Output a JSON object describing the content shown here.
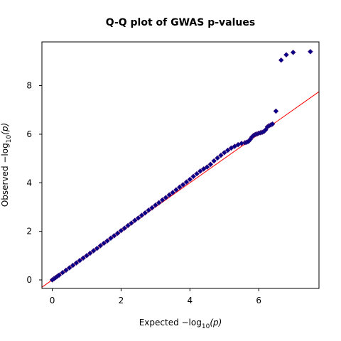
{
  "chart_data": {
    "type": "scatter",
    "title": "Q-Q plot of GWAS p-values",
    "xlabel": {
      "prefix": "Expected  −log",
      "subscript": "10",
      "suffix": "(p)"
    },
    "ylabel": {
      "prefix": "Observed  −log",
      "subscript": "10",
      "suffix": "(p)"
    },
    "xlim": [
      -0.3,
      7.75
    ],
    "ylim": [
      -0.35,
      9.8
    ],
    "xticks": [
      0,
      2,
      4,
      6
    ],
    "yticks": [
      0,
      2,
      4,
      6,
      8
    ],
    "reference_line": {
      "slope": 1,
      "intercept": 0,
      "color": "#ff0000"
    },
    "point_color": "#00008b",
    "point_edge": "#3a0d78",
    "series": [
      {
        "values": [
          [
            0.0,
            0.0
          ],
          [
            0.05,
            0.05
          ],
          [
            0.1,
            0.1
          ],
          [
            0.15,
            0.15
          ],
          [
            0.2,
            0.2
          ],
          [
            0.3,
            0.3
          ],
          [
            0.4,
            0.4
          ],
          [
            0.5,
            0.5
          ],
          [
            0.6,
            0.6
          ],
          [
            0.7,
            0.7
          ],
          [
            0.8,
            0.8
          ],
          [
            0.9,
            0.9
          ],
          [
            1.0,
            1.0
          ],
          [
            1.1,
            1.1
          ],
          [
            1.2,
            1.2
          ],
          [
            1.3,
            1.3
          ],
          [
            1.4,
            1.41
          ],
          [
            1.5,
            1.51
          ],
          [
            1.6,
            1.61
          ],
          [
            1.7,
            1.72
          ],
          [
            1.8,
            1.82
          ],
          [
            1.9,
            1.92
          ],
          [
            2.0,
            2.03
          ],
          [
            2.1,
            2.13
          ],
          [
            2.2,
            2.24
          ],
          [
            2.3,
            2.34
          ],
          [
            2.4,
            2.45
          ],
          [
            2.5,
            2.55
          ],
          [
            2.6,
            2.66
          ],
          [
            2.7,
            2.76
          ],
          [
            2.8,
            2.87
          ],
          [
            2.9,
            2.97
          ],
          [
            3.0,
            3.08
          ],
          [
            3.1,
            3.18
          ],
          [
            3.2,
            3.29
          ],
          [
            3.3,
            3.39
          ],
          [
            3.4,
            3.5
          ],
          [
            3.5,
            3.6
          ],
          [
            3.6,
            3.71
          ],
          [
            3.7,
            3.82
          ],
          [
            3.8,
            3.92
          ],
          [
            3.9,
            4.03
          ],
          [
            4.0,
            4.14
          ],
          [
            4.1,
            4.26
          ],
          [
            4.2,
            4.37
          ],
          [
            4.3,
            4.48
          ],
          [
            4.4,
            4.57
          ],
          [
            4.5,
            4.65
          ],
          [
            4.6,
            4.76
          ],
          [
            4.7,
            4.9
          ],
          [
            4.8,
            5.02
          ],
          [
            4.9,
            5.13
          ],
          [
            5.0,
            5.24
          ],
          [
            5.1,
            5.34
          ],
          [
            5.2,
            5.43
          ],
          [
            5.3,
            5.5
          ],
          [
            5.4,
            5.57
          ],
          [
            5.5,
            5.62
          ],
          [
            5.6,
            5.65
          ],
          [
            5.65,
            5.67
          ],
          [
            5.7,
            5.7
          ],
          [
            5.75,
            5.78
          ],
          [
            5.8,
            5.88
          ],
          [
            5.85,
            5.95
          ],
          [
            5.9,
            5.99
          ],
          [
            5.95,
            6.01
          ],
          [
            6.0,
            6.04
          ],
          [
            6.05,
            6.06
          ],
          [
            6.1,
            6.08
          ],
          [
            6.15,
            6.11
          ],
          [
            6.2,
            6.18
          ],
          [
            6.25,
            6.3
          ],
          [
            6.3,
            6.35
          ],
          [
            6.35,
            6.38
          ],
          [
            6.4,
            6.42
          ],
          [
            6.5,
            6.95
          ],
          [
            6.65,
            9.05
          ],
          [
            6.8,
            9.27
          ],
          [
            7.0,
            9.37
          ],
          [
            7.5,
            9.4
          ]
        ]
      }
    ]
  }
}
